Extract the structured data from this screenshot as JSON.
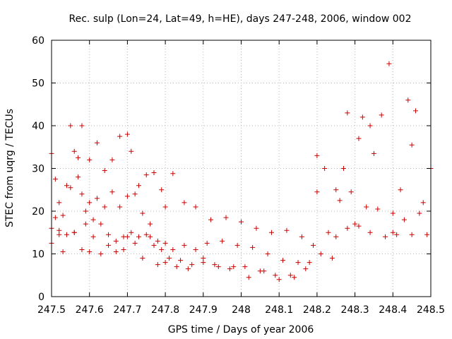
{
  "chart_data": {
    "type": "scatter",
    "title": "Rec. sulp (Lon=24, Lat=49, h=HE), days 247-248, 2006, window 002",
    "xlabel": "GPS time / Days of year 2006",
    "ylabel": "STEC from uqrg / TECUs",
    "xlim": [
      247.5,
      248.5
    ],
    "ylim": [
      0,
      60
    ],
    "xticks": [
      "247.5",
      "247.6",
      "247.7",
      "247.8",
      "247.9",
      "248",
      "248.1",
      "248.2",
      "248.3",
      "248.4",
      "248.5"
    ],
    "yticks": [
      "0",
      "10",
      "20",
      "30",
      "40",
      "50",
      "60"
    ],
    "grid": true,
    "marker": "+",
    "color": "#cc0000",
    "series": [
      {
        "x": [
          247.5,
          247.5,
          247.51,
          247.52,
          247.52,
          247.53,
          247.54,
          247.55,
          247.56,
          247.56,
          247.57,
          247.58,
          247.58,
          247.59,
          247.6,
          247.6,
          247.61,
          247.62,
          247.63,
          247.64,
          247.65,
          247.66,
          247.67,
          247.68,
          247.69,
          247.7,
          247.7,
          247.71,
          247.72,
          247.73,
          247.74,
          247.75,
          247.76,
          247.77,
          247.78,
          247.79,
          247.8,
          247.8,
          247.82,
          247.83,
          247.85,
          247.86,
          247.88,
          247.9,
          247.92,
          247.94,
          247.96,
          247.98,
          248.0,
          248.02,
          248.04,
          248.06,
          248.08,
          248.1,
          248.12,
          248.14,
          248.16,
          248.18,
          248.2,
          248.2,
          248.22,
          248.24,
          248.25,
          248.27,
          248.28,
          248.3,
          248.31,
          248.32,
          248.34,
          248.35,
          248.37,
          248.39,
          248.4,
          248.42,
          248.44,
          248.45,
          248.46,
          248.48,
          248.5
        ],
        "y": [
          33.5,
          12.5,
          27.5,
          15.5,
          22,
          10.5,
          26,
          40,
          34,
          15,
          32.5,
          40,
          11,
          20,
          32,
          10.5,
          18,
          36,
          10,
          29.5,
          12,
          32,
          10.5,
          37.5,
          11,
          38,
          14,
          34,
          12.5,
          26,
          9,
          28.5,
          14,
          29,
          7.5,
          25,
          8,
          21,
          28.8,
          7,
          22,
          6.5,
          21,
          9,
          18,
          7,
          18.5,
          7,
          17.5,
          4.5,
          16,
          6,
          15,
          4,
          15.5,
          4.5,
          14,
          8,
          33,
          24.5,
          30,
          9,
          25,
          30,
          43,
          17,
          37,
          42,
          40,
          33.5,
          42.5,
          54.5,
          15,
          25,
          46,
          35.5,
          43.5,
          22,
          30
        ]
      },
      {
        "x": [
          247.5,
          247.51,
          247.52,
          247.53,
          247.54,
          247.55,
          247.56,
          247.57,
          247.58,
          247.59,
          247.6,
          247.61,
          247.62,
          247.63,
          247.64,
          247.65,
          247.66,
          247.67,
          247.68,
          247.69,
          247.7,
          247.71,
          247.72,
          247.73,
          247.74,
          247.75,
          247.76,
          247.77,
          247.78,
          247.79,
          247.8,
          247.81,
          247.82,
          247.84,
          247.85,
          247.87,
          247.88,
          247.9,
          247.91,
          247.93,
          247.95,
          247.97,
          247.99,
          248.01,
          248.03,
          248.05,
          248.07,
          248.09,
          248.11,
          248.13,
          248.15,
          248.17,
          248.19,
          248.21,
          248.23,
          248.25,
          248.26,
          248.28,
          248.29,
          248.31,
          248.33,
          248.34,
          248.36,
          248.38,
          248.4,
          248.41,
          248.43,
          248.45,
          248.47,
          248.49
        ],
        "y": [
          16,
          18.5,
          14.5,
          19,
          14.5,
          25.5,
          15,
          28,
          24,
          17,
          22,
          14,
          23,
          17,
          21,
          14.5,
          24.5,
          13,
          21,
          14,
          23.5,
          15,
          24,
          14,
          19.5,
          14.5,
          17,
          12,
          13,
          11,
          12.5,
          9,
          11,
          8.5,
          12,
          7.5,
          11,
          8,
          12.5,
          7.5,
          13,
          6.5,
          12,
          7,
          11.5,
          6,
          10,
          5,
          8.5,
          5,
          8,
          6.5,
          12,
          10,
          15,
          14,
          22.5,
          16,
          24.5,
          16.5,
          21,
          15,
          20.5,
          14,
          19.5,
          14.5,
          18,
          14.5,
          19.5,
          14.5
        ]
      }
    ]
  }
}
